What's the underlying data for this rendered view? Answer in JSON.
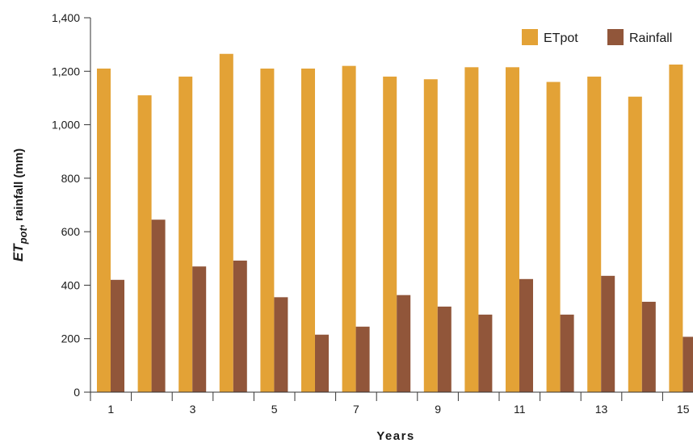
{
  "chart_data": {
    "type": "bar",
    "categories": [
      "1",
      "2",
      "3",
      "4",
      "5",
      "6",
      "7",
      "8",
      "9",
      "10",
      "11",
      "12",
      "13",
      "14",
      "15"
    ],
    "x_tick_labels": [
      "1",
      "",
      "3",
      "",
      "5",
      "",
      "7",
      "",
      "9",
      "",
      "11",
      "",
      "13",
      "",
      "15"
    ],
    "series": [
      {
        "name": "ETpot",
        "color": "#E3A236",
        "values": [
          1210,
          1110,
          1180,
          1265,
          1210,
          1210,
          1220,
          1180,
          1170,
          1215,
          1215,
          1160,
          1180,
          1105,
          1225
        ]
      },
      {
        "name": "Rainfall",
        "color": "#91563A",
        "values": [
          420,
          645,
          470,
          492,
          355,
          215,
          245,
          363,
          320,
          290,
          423,
          290,
          435,
          338,
          207
        ]
      }
    ],
    "xlabel": "Years",
    "ylabel": {
      "prefix": "ET",
      "subscript": "pot",
      "suffix": ", rainfall (mm)"
    },
    "ylim": [
      0,
      1400
    ],
    "y_ticks": [
      0,
      200,
      400,
      600,
      800,
      1000,
      1200,
      1400
    ],
    "y_tick_labels": [
      "0",
      "200",
      "400",
      "600",
      "800",
      "1,000",
      "1,200",
      "1,400"
    ],
    "grid": false,
    "legend_position": "top-right"
  }
}
